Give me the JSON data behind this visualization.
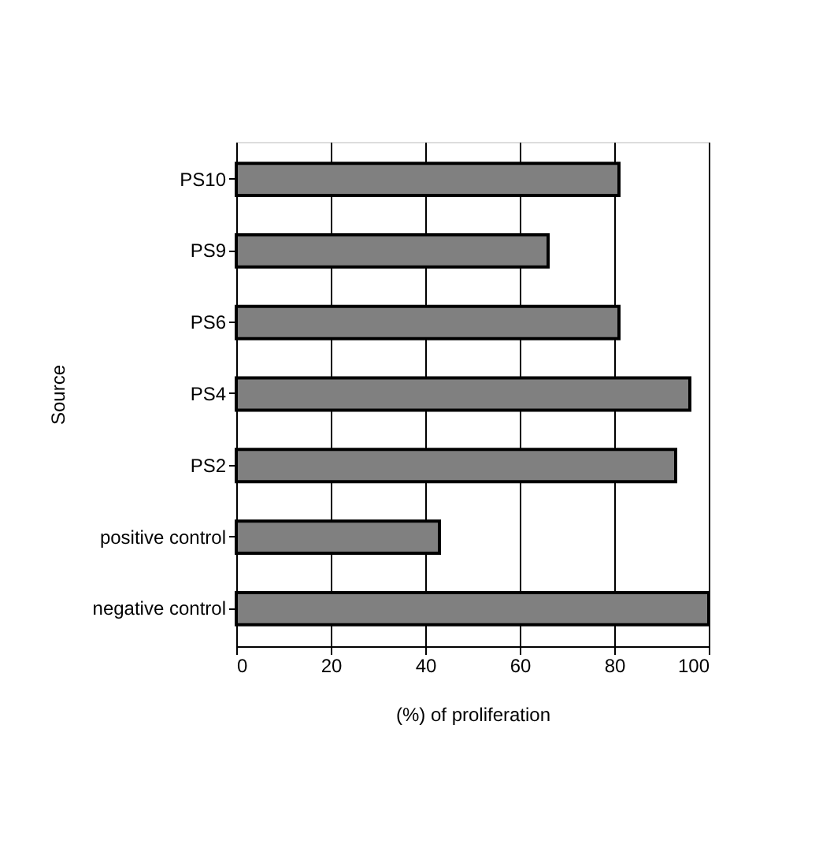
{
  "chart_data": {
    "type": "bar",
    "orientation": "horizontal",
    "xlabel": "(%) of proliferation",
    "ylabel": "Source",
    "categories": [
      "PS10",
      "PS9",
      "PS6",
      "PS4",
      "PS2",
      "positive control",
      "negative control"
    ],
    "values": [
      81,
      66,
      81,
      96,
      93,
      43,
      100
    ],
    "color": "#808080",
    "xlim": [
      0,
      100
    ],
    "xticks": [
      0,
      20,
      40,
      60,
      80,
      100
    ],
    "grid": "x"
  }
}
